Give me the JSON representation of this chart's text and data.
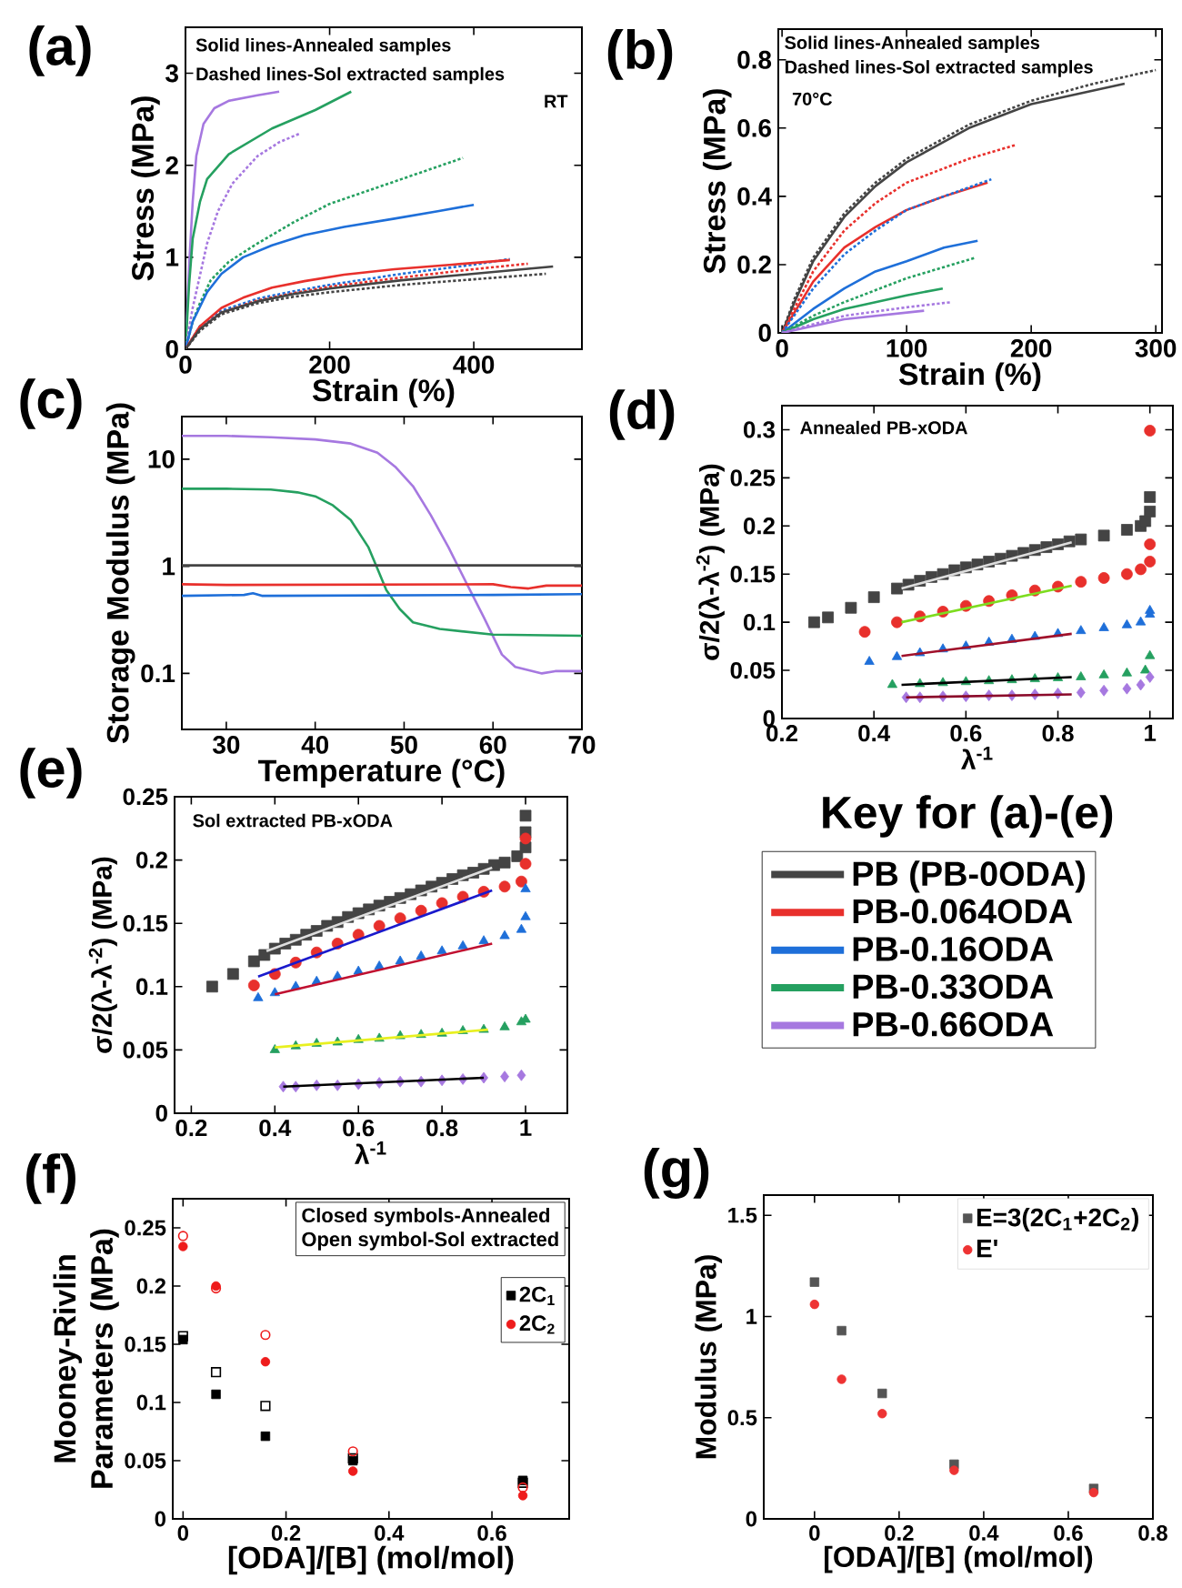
{
  "chart_data": [
    {
      "type": "line",
      "title": "(a)",
      "xlabel": "Strain (%)",
      "ylabel": "Stress (MPa)",
      "annotations": [
        "Solid lines-Annealed samples",
        "Dashed lines-Sol extracted samples",
        "RT"
      ],
      "xlim": [
        0,
        550
      ],
      "ylim": [
        0,
        3.5
      ],
      "xticks": [
        0,
        200,
        400
      ],
      "yticks": [
        0,
        1,
        2,
        3
      ],
      "series": [
        {
          "color": "#a678e0",
          "line_style": "solid",
          "x": [
            0,
            5,
            10,
            15,
            25,
            40,
            60,
            100,
            130
          ],
          "values": [
            0,
            0.9,
            1.6,
            2.1,
            2.45,
            2.62,
            2.7,
            2.76,
            2.8
          ]
        },
        {
          "color": "#25a060",
          "line_style": "solid",
          "x": [
            0,
            5,
            10,
            20,
            30,
            60,
            120,
            180,
            230
          ],
          "values": [
            0,
            0.7,
            1.2,
            1.6,
            1.85,
            2.12,
            2.4,
            2.6,
            2.8
          ]
        },
        {
          "color": "#a678e0",
          "line_style": "dotted",
          "x": [
            0,
            10,
            20,
            30,
            45,
            65,
            100,
            130,
            160
          ],
          "values": [
            0,
            0.45,
            0.8,
            1.15,
            1.5,
            1.8,
            2.1,
            2.25,
            2.35
          ]
        },
        {
          "color": "#25a060",
          "line_style": "dotted",
          "x": [
            0,
            10,
            20,
            35,
            60,
            100,
            150,
            200,
            300,
            385
          ],
          "values": [
            0,
            0.3,
            0.5,
            0.75,
            0.95,
            1.15,
            1.38,
            1.58,
            1.85,
            2.08
          ]
        },
        {
          "color": "#1e6fd9",
          "line_style": "solid",
          "x": [
            0,
            10,
            30,
            50,
            80,
            120,
            165,
            220,
            290,
            350,
            400
          ],
          "values": [
            0,
            0.3,
            0.62,
            0.82,
            1.0,
            1.13,
            1.24,
            1.33,
            1.42,
            1.5,
            1.57
          ]
        },
        {
          "color": "#1e6fd9",
          "line_style": "dotted",
          "x": [
            0,
            20,
            50,
            100,
            150,
            200,
            300,
            400,
            450
          ],
          "values": [
            0,
            0.25,
            0.42,
            0.55,
            0.63,
            0.7,
            0.82,
            0.92,
            0.98
          ]
        },
        {
          "color": "#e8302c",
          "line_style": "solid",
          "x": [
            0,
            20,
            50,
            80,
            120,
            165,
            220,
            290,
            370,
            450
          ],
          "values": [
            0,
            0.25,
            0.45,
            0.56,
            0.67,
            0.74,
            0.81,
            0.87,
            0.92,
            0.97
          ]
        },
        {
          "color": "#e8302c",
          "line_style": "dotted",
          "x": [
            0,
            20,
            50,
            100,
            150,
            200,
            300,
            400,
            475
          ],
          "values": [
            0,
            0.22,
            0.4,
            0.53,
            0.61,
            0.68,
            0.78,
            0.87,
            0.93
          ]
        },
        {
          "color": "#444444",
          "line_style": "solid",
          "x": [
            0,
            20,
            50,
            100,
            150,
            200,
            300,
            400,
            510
          ],
          "values": [
            0,
            0.22,
            0.4,
            0.52,
            0.6,
            0.66,
            0.75,
            0.82,
            0.9
          ]
        },
        {
          "color": "#444444",
          "line_style": "dotted",
          "x": [
            0,
            20,
            50,
            100,
            150,
            200,
            300,
            400,
            500
          ],
          "values": [
            0,
            0.2,
            0.38,
            0.5,
            0.57,
            0.62,
            0.7,
            0.76,
            0.82
          ]
        }
      ]
    },
    {
      "type": "line",
      "title": "(b)",
      "xlabel": "Strain (%)",
      "ylabel": "Stress (MPa)",
      "annotations": [
        "Solid lines-Annealed samples",
        "Dashed lines-Sol extracted samples",
        "70°C"
      ],
      "xlim": [
        -3,
        305
      ],
      "ylim": [
        0,
        0.89
      ],
      "xticks": [
        0,
        100,
        200,
        300
      ],
      "yticks": [
        0,
        0.2,
        0.4,
        0.6,
        0.8
      ],
      "series": [
        {
          "color": "#444444",
          "line_style": "solid",
          "x": [
            0,
            10,
            25,
            50,
            75,
            100,
            150,
            200,
            275
          ],
          "values": [
            0,
            0.09,
            0.21,
            0.34,
            0.43,
            0.5,
            0.6,
            0.67,
            0.73
          ]
        },
        {
          "color": "#444444",
          "line_style": "dotted",
          "x": [
            0,
            10,
            25,
            50,
            75,
            100,
            150,
            200,
            250,
            300
          ],
          "values": [
            0,
            0.1,
            0.22,
            0.35,
            0.44,
            0.51,
            0.61,
            0.68,
            0.73,
            0.77
          ]
        },
        {
          "color": "#e8302c",
          "line_style": "dotted",
          "x": [
            0,
            25,
            50,
            75,
            100,
            150,
            187
          ],
          "values": [
            0,
            0.18,
            0.3,
            0.38,
            0.44,
            0.51,
            0.55
          ]
        },
        {
          "color": "#e8302c",
          "line_style": "solid",
          "x": [
            0,
            25,
            50,
            75,
            100,
            130,
            165
          ],
          "values": [
            0,
            0.15,
            0.25,
            0.31,
            0.36,
            0.4,
            0.44
          ]
        },
        {
          "color": "#1e6fd9",
          "line_style": "dotted",
          "x": [
            0,
            25,
            50,
            75,
            100,
            130,
            168
          ],
          "values": [
            0,
            0.13,
            0.23,
            0.3,
            0.36,
            0.4,
            0.45
          ]
        },
        {
          "color": "#1e6fd9",
          "line_style": "solid",
          "x": [
            0,
            25,
            50,
            75,
            100,
            130,
            157
          ],
          "values": [
            0,
            0.07,
            0.13,
            0.18,
            0.21,
            0.25,
            0.27
          ]
        },
        {
          "color": "#25a060",
          "line_style": "dotted",
          "x": [
            0,
            25,
            50,
            100,
            155
          ],
          "values": [
            0,
            0.05,
            0.09,
            0.16,
            0.22
          ]
        },
        {
          "color": "#25a060",
          "line_style": "solid",
          "x": [
            0,
            25,
            50,
            100,
            129
          ],
          "values": [
            0,
            0.04,
            0.07,
            0.11,
            0.13
          ]
        },
        {
          "color": "#a678e0",
          "line_style": "dotted",
          "x": [
            0,
            50,
            100,
            136
          ],
          "values": [
            0,
            0.05,
            0.075,
            0.09
          ]
        },
        {
          "color": "#a678e0",
          "line_style": "solid",
          "x": [
            0,
            50,
            114
          ],
          "values": [
            0,
            0.04,
            0.065
          ]
        }
      ]
    },
    {
      "type": "line",
      "title": "(c)",
      "xlabel": "Temperature (°C)",
      "ylabel": "Storage Modulus (MPa)",
      "log": true,
      "xlim": [
        25,
        70
      ],
      "ylim": [
        0.03,
        25
      ],
      "xticks": [
        30,
        40,
        50,
        60,
        70
      ],
      "yticks": [
        0.1,
        1,
        10
      ],
      "series": [
        {
          "color": "#a678e0",
          "line_style": "solid",
          "x": [
            25,
            30,
            35,
            40,
            44,
            47,
            49,
            51,
            53,
            55,
            57,
            59,
            61,
            62.5,
            65.5,
            67,
            70
          ],
          "values": [
            16.5,
            16.5,
            16,
            15.3,
            14,
            11.5,
            8.5,
            5.6,
            3,
            1.5,
            0.7,
            0.33,
            0.15,
            0.115,
            0.1,
            0.105,
            0.105
          ]
        },
        {
          "color": "#25a060",
          "line_style": "solid",
          "x": [
            25,
            30,
            35,
            38,
            40,
            42,
            44,
            46,
            47,
            48,
            49.5,
            51,
            54,
            60,
            70
          ],
          "values": [
            5.3,
            5.3,
            5.2,
            4.9,
            4.5,
            3.7,
            2.7,
            1.5,
            0.95,
            0.6,
            0.4,
            0.3,
            0.26,
            0.23,
            0.225
          ]
        },
        {
          "color": "#444444",
          "line_style": "solid",
          "x": [
            25,
            70
          ],
          "values": [
            1.02,
            1.02
          ]
        },
        {
          "color": "#e8302c",
          "line_style": "solid",
          "x": [
            25,
            30,
            60,
            62,
            64,
            66,
            70
          ],
          "values": [
            0.68,
            0.67,
            0.68,
            0.64,
            0.62,
            0.66,
            0.66
          ]
        },
        {
          "color": "#1e6fd9",
          "line_style": "solid",
          "x": [
            25,
            32,
            33,
            34,
            60,
            70
          ],
          "values": [
            0.53,
            0.54,
            0.56,
            0.53,
            0.54,
            0.55
          ]
        }
      ]
    },
    {
      "type": "scatter",
      "title": "(d)",
      "xlabel": "λ$^{-1}$",
      "ylabel": "σ/2(λ-λ$^{-2}$) (MPa)",
      "annotations": [
        "Annealed PB-xODA"
      ],
      "xlim": [
        0.2,
        1.05
      ],
      "ylim": [
        0,
        0.325
      ],
      "xticks": [
        0.2,
        0.4,
        0.6,
        0.8,
        1
      ],
      "yticks": [
        0,
        0.05,
        0.1,
        0.15,
        0.2,
        0.25,
        0.3
      ],
      "series": [
        {
          "marker": "square",
          "color": "#444444",
          "x": [
            0.27,
            0.3,
            0.35,
            0.4,
            0.45,
            0.475,
            0.5,
            0.525,
            0.55,
            0.575,
            0.6,
            0.625,
            0.65,
            0.675,
            0.7,
            0.725,
            0.75,
            0.775,
            0.8,
            0.825,
            0.85,
            0.9,
            0.95,
            0.98,
            0.99,
            1.0,
            1.0
          ],
          "values": [
            0.1,
            0.105,
            0.115,
            0.126,
            0.135,
            0.139,
            0.143,
            0.147,
            0.15,
            0.154,
            0.157,
            0.16,
            0.163,
            0.166,
            0.169,
            0.172,
            0.175,
            0.178,
            0.181,
            0.184,
            0.186,
            0.19,
            0.196,
            0.2,
            0.205,
            0.215,
            0.23
          ]
        },
        {
          "marker": "circle",
          "color": "#e8302c",
          "x": [
            0.38,
            0.45,
            0.5,
            0.55,
            0.6,
            0.65,
            0.7,
            0.75,
            0.8,
            0.85,
            0.9,
            0.95,
            0.98,
            1.0,
            1.0,
            1.0
          ],
          "values": [
            0.09,
            0.1,
            0.106,
            0.111,
            0.117,
            0.122,
            0.128,
            0.133,
            0.137,
            0.142,
            0.146,
            0.15,
            0.155,
            0.163,
            0.181,
            0.299
          ]
        },
        {
          "marker": "triangle",
          "color": "#1e6fd9",
          "x": [
            0.39,
            0.45,
            0.5,
            0.55,
            0.6,
            0.65,
            0.7,
            0.75,
            0.8,
            0.85,
            0.9,
            0.95,
            0.98,
            1.0,
            1.0
          ],
          "values": [
            0.059,
            0.064,
            0.068,
            0.072,
            0.075,
            0.079,
            0.082,
            0.085,
            0.088,
            0.091,
            0.094,
            0.097,
            0.1,
            0.108,
            0.112
          ]
        },
        {
          "marker": "triangle",
          "color": "#25a060",
          "x": [
            0.44,
            0.5,
            0.55,
            0.6,
            0.65,
            0.7,
            0.75,
            0.8,
            0.85,
            0.9,
            0.95,
            0.99,
            1.0
          ],
          "values": [
            0.035,
            0.036,
            0.037,
            0.038,
            0.039,
            0.04,
            0.041,
            0.042,
            0.043,
            0.045,
            0.047,
            0.05,
            0.065
          ]
        },
        {
          "marker": "diamond",
          "color": "#a678e0",
          "x": [
            0.47,
            0.5,
            0.55,
            0.6,
            0.65,
            0.7,
            0.75,
            0.8,
            0.85,
            0.9,
            0.95,
            0.98,
            1.0
          ],
          "values": [
            0.022,
            0.022,
            0.023,
            0.023,
            0.024,
            0.024,
            0.025,
            0.026,
            0.027,
            0.029,
            0.031,
            0.035,
            0.043
          ]
        },
        {
          "type": "line",
          "color": "#dddddd",
          "x": [
            0.46,
            0.83
          ],
          "values": [
            0.135,
            0.183
          ]
        },
        {
          "type": "line",
          "color": "#7ddc1f",
          "x": [
            0.46,
            0.83
          ],
          "values": [
            0.1,
            0.138
          ]
        },
        {
          "type": "line",
          "color": "#a0102a",
          "x": [
            0.46,
            0.83
          ],
          "values": [
            0.065,
            0.088
          ]
        },
        {
          "type": "line",
          "color": "#000000",
          "x": [
            0.46,
            0.83
          ],
          "values": [
            0.035,
            0.043
          ]
        },
        {
          "type": "line",
          "color": "#8b0a2a",
          "x": [
            0.47,
            0.83
          ],
          "values": [
            0.022,
            0.025
          ]
        }
      ]
    },
    {
      "type": "scatter",
      "title": "(e)",
      "xlabel": "λ$^{-1}$",
      "ylabel": "σ/2(λ-λ$^{-2}$) (MPa)",
      "annotations": [
        "Sol extracted PB-xODA"
      ],
      "legend": "right",
      "legend_title": "Key for (a)-(e)",
      "xlim": [
        0.16,
        1.1
      ],
      "ylim": [
        0,
        0.25
      ],
      "xticks": [
        0.2,
        0.4,
        0.6,
        0.8,
        1
      ],
      "yticks": [
        0,
        0.05,
        0.1,
        0.15,
        0.2,
        0.25
      ],
      "series": [
        {
          "name": "PB (PB-0ODA)",
          "marker": "square",
          "color": "#444444",
          "x": [
            0.25,
            0.3,
            0.35,
            0.375,
            0.4,
            0.425,
            0.45,
            0.475,
            0.5,
            0.525,
            0.55,
            0.575,
            0.6,
            0.625,
            0.65,
            0.675,
            0.7,
            0.725,
            0.75,
            0.775,
            0.8,
            0.825,
            0.85,
            0.875,
            0.9,
            0.925,
            0.95,
            0.98,
            1.0,
            1.0,
            1.0
          ],
          "values": [
            0.1,
            0.11,
            0.12,
            0.125,
            0.13,
            0.134,
            0.137,
            0.141,
            0.144,
            0.148,
            0.151,
            0.155,
            0.158,
            0.161,
            0.164,
            0.167,
            0.17,
            0.173,
            0.176,
            0.179,
            0.182,
            0.185,
            0.188,
            0.19,
            0.193,
            0.196,
            0.198,
            0.203,
            0.21,
            0.222,
            0.235
          ]
        },
        {
          "name": "PB-0.064ODA",
          "marker": "circle",
          "color": "#e8302c",
          "x": [
            0.35,
            0.4,
            0.45,
            0.5,
            0.55,
            0.6,
            0.65,
            0.7,
            0.75,
            0.8,
            0.85,
            0.9,
            0.95,
            0.99,
            1.0,
            1.0
          ],
          "values": [
            0.101,
            0.11,
            0.119,
            0.127,
            0.134,
            0.141,
            0.148,
            0.154,
            0.16,
            0.166,
            0.171,
            0.175,
            0.179,
            0.183,
            0.197,
            0.217
          ]
        },
        {
          "name": "PB-0.16ODA",
          "marker": "triangle",
          "color": "#1e6fd9",
          "x": [
            0.36,
            0.4,
            0.45,
            0.5,
            0.55,
            0.6,
            0.65,
            0.7,
            0.75,
            0.8,
            0.85,
            0.9,
            0.95,
            0.99,
            1.0,
            1.0
          ],
          "values": [
            0.091,
            0.095,
            0.1,
            0.104,
            0.108,
            0.112,
            0.116,
            0.12,
            0.124,
            0.128,
            0.132,
            0.136,
            0.14,
            0.145,
            0.155,
            0.177
          ]
        },
        {
          "name": "PB-0.33ODA",
          "marker": "triangle",
          "color": "#25a060",
          "x": [
            0.4,
            0.45,
            0.5,
            0.55,
            0.6,
            0.65,
            0.7,
            0.75,
            0.8,
            0.85,
            0.9,
            0.95,
            0.99,
            1.0
          ],
          "values": [
            0.05,
            0.053,
            0.055,
            0.056,
            0.058,
            0.059,
            0.061,
            0.062,
            0.063,
            0.065,
            0.066,
            0.068,
            0.072,
            0.074
          ]
        },
        {
          "name": "PB-0.66ODA",
          "marker": "diamond",
          "color": "#a678e0",
          "x": [
            0.42,
            0.45,
            0.5,
            0.55,
            0.6,
            0.65,
            0.7,
            0.75,
            0.8,
            0.85,
            0.9,
            0.95,
            0.99
          ],
          "values": [
            0.021,
            0.021,
            0.022,
            0.022,
            0.023,
            0.024,
            0.025,
            0.025,
            0.026,
            0.027,
            0.028,
            0.029,
            0.03
          ]
        },
        {
          "type": "line",
          "color": "#dddddd",
          "x": [
            0.38,
            0.92
          ],
          "values": [
            0.128,
            0.194
          ]
        },
        {
          "type": "line",
          "color": "#1a1acc",
          "x": [
            0.36,
            0.92
          ],
          "values": [
            0.108,
            0.176
          ]
        },
        {
          "type": "line",
          "color": "#c01030",
          "x": [
            0.4,
            0.92
          ],
          "values": [
            0.094,
            0.134
          ]
        },
        {
          "type": "line",
          "color": "#e8f020",
          "x": [
            0.4,
            0.91
          ],
          "values": [
            0.052,
            0.066
          ]
        },
        {
          "type": "line",
          "color": "#000000",
          "x": [
            0.42,
            0.9
          ],
          "values": [
            0.021,
            0.028
          ]
        }
      ]
    },
    {
      "type": "scatter",
      "title": "(f)",
      "xlabel": "[ODA]/[B] (mol/mol)",
      "ylabel": "Mooney-Rivlin Parameters (MPa)",
      "annotations": [
        "Closed symbols-Annealed",
        "Open symbol-Sol extracted"
      ],
      "legend": "top right",
      "xlim": [
        -0.02,
        0.75
      ],
      "ylim": [
        0,
        0.275
      ],
      "xticks": [
        0,
        0.2,
        0.4,
        0.6
      ],
      "yticks": [
        0,
        0.05,
        0.1,
        0.15,
        0.2,
        0.25
      ],
      "x": [
        0,
        0.064,
        0.16,
        0.33,
        0.66
      ],
      "series": [
        {
          "name": "2C$_{1}$",
          "marker": "square",
          "color": "#000000",
          "values": [
            0.154,
            0.107,
            0.071,
            0.05,
            0.033
          ]
        },
        {
          "name": "2C$_{2}$",
          "marker": "circle",
          "color": "#ee1c1c",
          "values": [
            0.234,
            0.2,
            0.135,
            0.041,
            0.02
          ]
        },
        {
          "marker": "square",
          "color": "#000000",
          "values": [
            0.157,
            0.126,
            0.097,
            0.052,
            0.031
          ]
        },
        {
          "marker": "circle",
          "color": "#ee1c1c",
          "values": [
            0.243,
            0.198,
            0.158,
            0.058,
            0.027
          ]
        }
      ]
    },
    {
      "type": "scatter",
      "title": "(g)",
      "xlabel": "[ODA]/[B] (mol/mol)",
      "ylabel": "Modulus (MPa)",
      "legend": "top right",
      "xlim": [
        -0.12,
        0.8
      ],
      "ylim": [
        0,
        1.6
      ],
      "xticks": [
        0,
        0.2,
        0.4,
        0.6,
        0.8
      ],
      "yticks": [
        0,
        0.5,
        1,
        1.5
      ],
      "x": [
        0,
        0.064,
        0.16,
        0.33,
        0.66
      ],
      "series": [
        {
          "name": "E=3(2C$_{1}$+2C$_{2}$)",
          "marker": "square",
          "color": "#555555",
          "values": [
            1.17,
            0.93,
            0.62,
            0.27,
            0.15
          ]
        },
        {
          "name": "E'",
          "marker": "circle",
          "color": "#ee3333",
          "values": [
            1.06,
            0.69,
            0.52,
            0.24,
            0.13
          ]
        }
      ]
    }
  ]
}
